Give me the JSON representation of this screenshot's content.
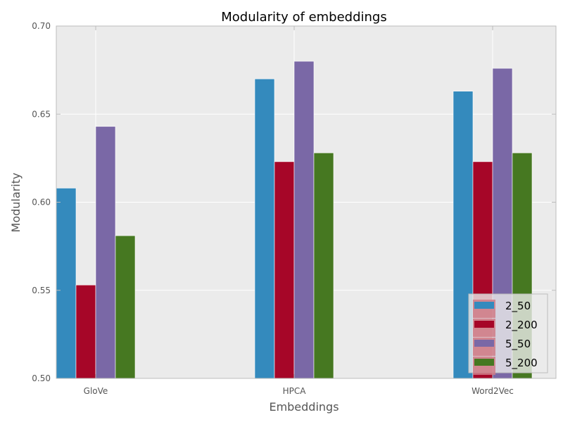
{
  "chart_data": {
    "type": "bar",
    "title": "Modularity of embeddings",
    "xlabel": "Embeddings",
    "ylabel": "Modularity",
    "categories": [
      "GloVe",
      "HPCA",
      "Word2Vec"
    ],
    "ylim": [
      0.5,
      0.7
    ],
    "yticks": [
      "0.50",
      "0.55",
      "0.60",
      "0.65",
      "0.70"
    ],
    "grid": true,
    "legend_position": "lower-right",
    "series": [
      {
        "name": "2_50",
        "color": "#348ABD",
        "values": [
          0.608,
          0.67,
          0.663
        ]
      },
      {
        "name": "2_200",
        "color": "#A60628",
        "values": [
          0.553,
          0.623,
          0.623
        ]
      },
      {
        "name": "5_50",
        "color": "#7A68A6",
        "values": [
          0.643,
          0.68,
          0.676
        ]
      },
      {
        "name": "5_200",
        "color": "#467821",
        "values": [
          0.581,
          0.628,
          0.628
        ]
      }
    ]
  },
  "colors": {
    "plot_background": "#EBEBEB",
    "axis": "#BCBCBC",
    "legend_swatch_background": "#CF7C87"
  }
}
